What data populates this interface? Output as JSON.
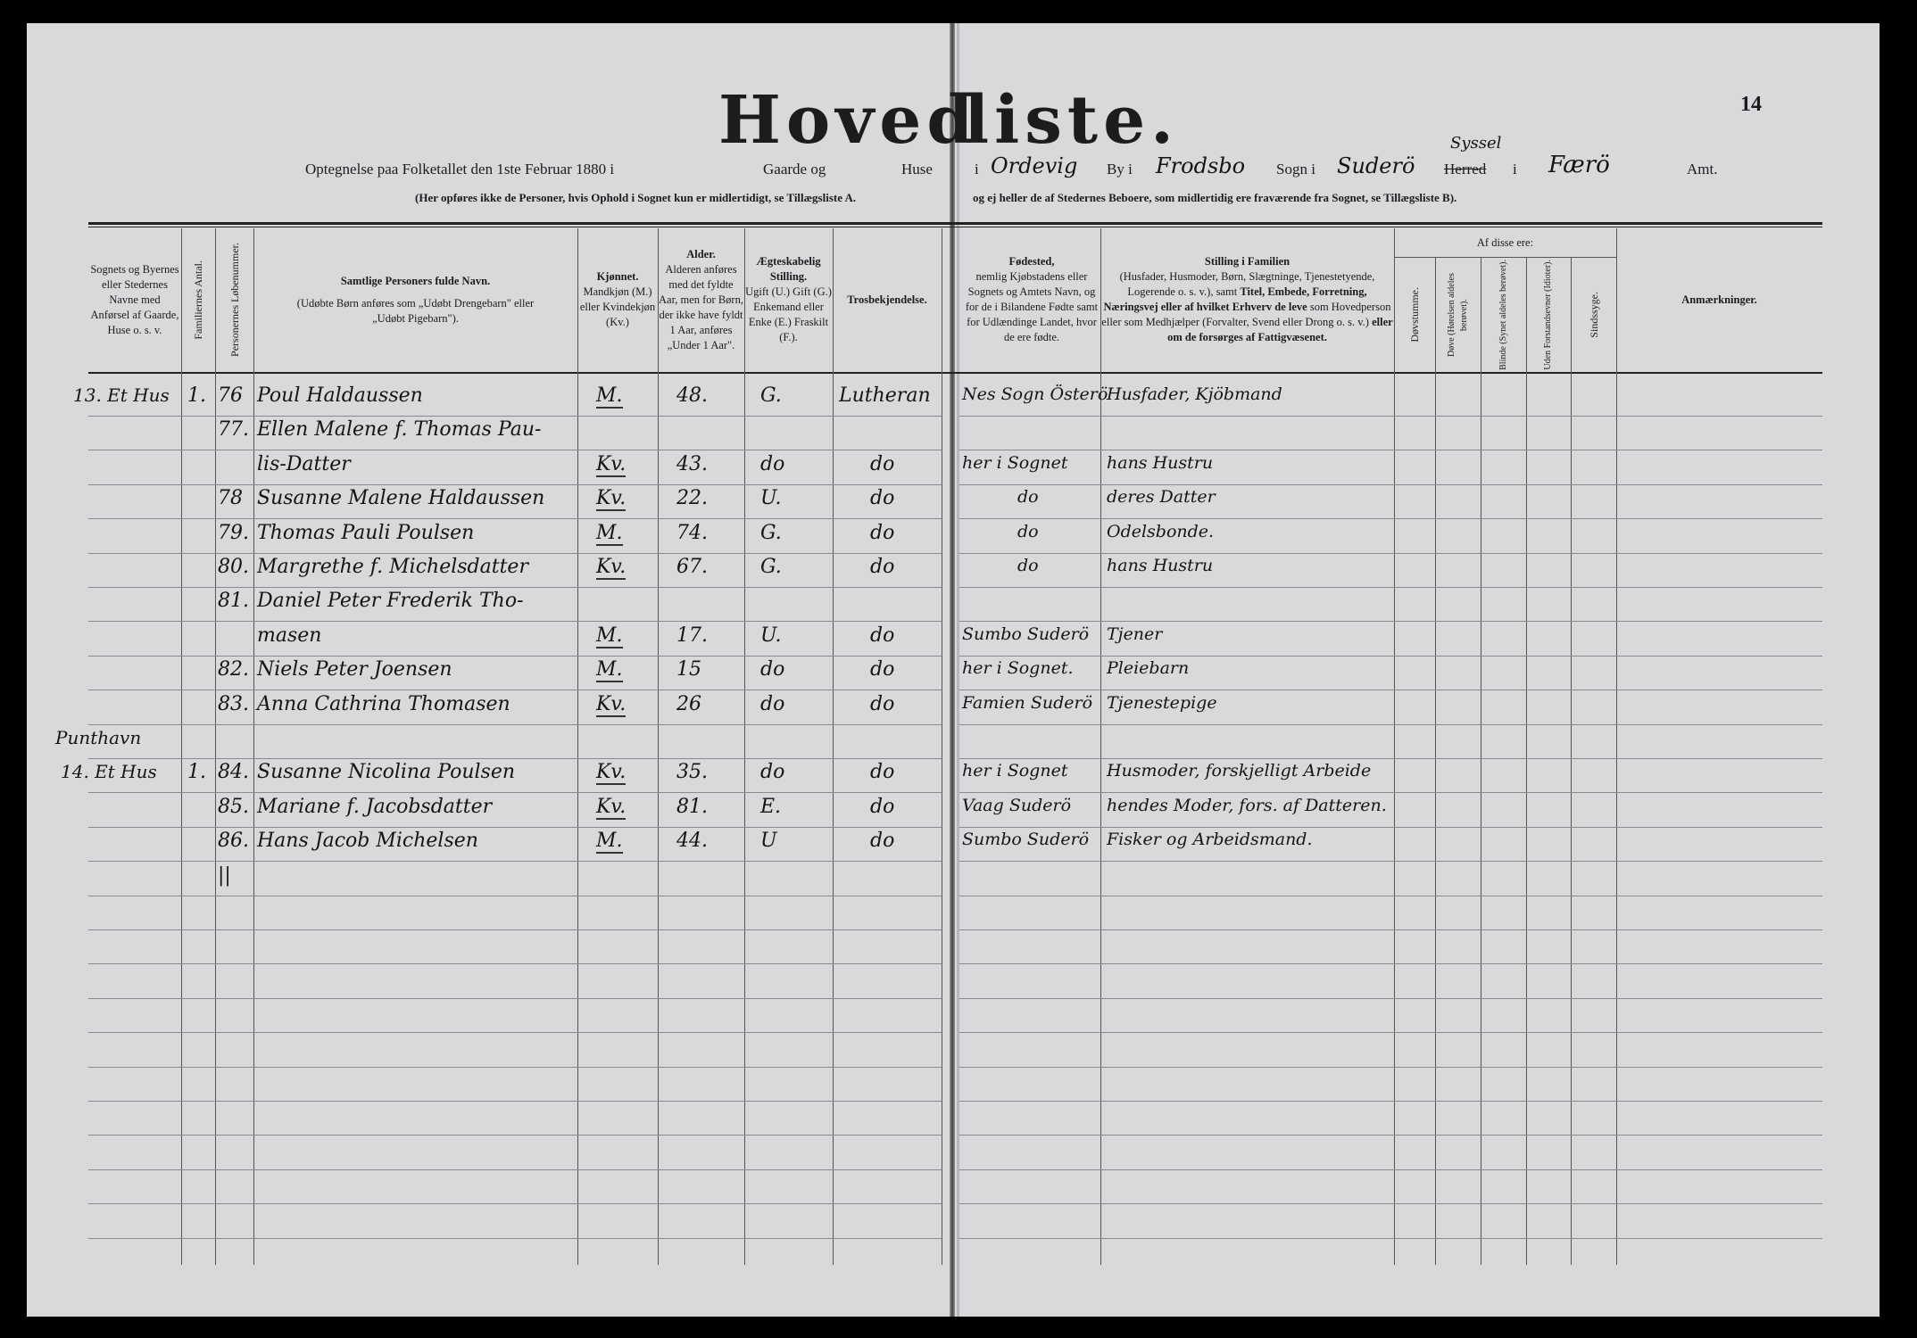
{
  "title": {
    "part1": "Hoved",
    "part2": "liste.",
    "page_number": "14"
  },
  "subtitle": {
    "left": "Optegnelse paa Folketallet den 1ste Februar 1880 i",
    "gaarde": "Gaarde og",
    "huse": "Huse",
    "i1": "i",
    "place_hw": "Ordevig",
    "by": "By i",
    "sogn_hw": "Frodsbo",
    "sogn": "Sogn i",
    "syssel_hw": "Suderö",
    "syssel_over": "Syssel",
    "herred_struck": "Herred",
    "i2": "i",
    "amt_hw": "Færö",
    "amt": "Amt.",
    "note_left": "(Her opføres ikke de Personer, hvis Ophold i Sognet kun er midlertidigt, se Tillægsliste A.",
    "note_right": "og ej heller de af Stedernes Beboere, som midlertidig ere fraværende fra Sognet, se Tillægsliste B)."
  },
  "headers": {
    "place": "Sognets og Byernes eller Stedernes Navne med Anførsel af Gaarde, Huse o. s. v.",
    "families": "Familiernes Antal.",
    "person_no": "Personernes Løbenummer.",
    "name_title": "Samtlige Personers fulde Navn.",
    "name_note": "(Udøbte Børn anføres som „Udøbt Drengebarn\" eller „Udøbt Pigebarn\").",
    "sex_title": "Kjønnet.",
    "sex_note": "Mandkjøn (M.) eller Kvindekjøn (Kv.)",
    "age_title": "Alder.",
    "age_note": "Alderen anføres med det fyldte Aar, men for Børn, der ikke have fyldt 1 Aar, anføres „Under 1 Aar\".",
    "civil_title": "Ægteskabelig Stilling.",
    "civil_note": "Ugift (U.) Gift (G.) Enkemand eller Enke (E.) Fraskilt (F.).",
    "religion": "Trosbekjendelse.",
    "birth_title": "Fødested,",
    "birth_note": "nemlig Kjøbstadens eller Sognets og Amtets Navn, og for de i Bilandene Fødte samt for Udlændinge Landet, hvor de ere fødte.",
    "position_title": "Stilling i Familien",
    "position_note1": "(Husfader, Husmoder, Børn, Slægtninge, Tjenestetyende, Logerende o. s. v.), samt",
    "position_bold1": "Titel, Embede, Forretning, Næringsvej eller af hvilket Erhverv de leve",
    "position_note2": "som Hovedperson eller som Medhjælper (Forvalter, Svend eller Drong o. s. v.)",
    "position_bold2": "eller om de forsørges af Fattigvæsenet.",
    "af_disse": "Af disse ere:",
    "deaf_mute": "Døvstumme.",
    "deaf": "Døve (Hørelsen aldeles berøvet).",
    "blind": "Blinde (Synet aldeles berøvet).",
    "idiots": "Uden Forstandsevner (Idioter).",
    "insane": "Sindssyge.",
    "remarks": "Anmærkninger."
  },
  "rows": [
    {
      "place": "13. Et Hus",
      "fam": "1.",
      "no": "76",
      "name": "Poul Haldaussen",
      "sex": "M.",
      "age": "48.",
      "civil": "G.",
      "religion": "Lutheran",
      "birth": "Nes Sogn Österö",
      "position": "Husfader, Kjöbmand"
    },
    {
      "no": "77.",
      "name": "Ellen Malene f. Thomas Pau-"
    },
    {
      "name": "lis-Datter",
      "sex": "Kv.",
      "age": "43.",
      "civil": "do",
      "religion": "do",
      "birth": "her i Sognet",
      "position": "hans Hustru"
    },
    {
      "no": "78",
      "name": "Susanne Malene Haldaussen",
      "sex": "Kv.",
      "age": "22.",
      "civil": "U.",
      "religion": "do",
      "birth": "do",
      "position": "deres Datter"
    },
    {
      "no": "79.",
      "name": "Thomas Pauli Poulsen",
      "sex": "M.",
      "age": "74.",
      "civil": "G.",
      "religion": "do",
      "birth": "do",
      "position": "Odelsbonde."
    },
    {
      "no": "80.",
      "name": "Margrethe f. Michelsdatter",
      "sex": "Kv.",
      "age": "67.",
      "civil": "G.",
      "religion": "do",
      "birth": "do",
      "position": "hans Hustru"
    },
    {
      "no": "81.",
      "name": "Daniel Peter Frederik Tho-"
    },
    {
      "name": "masen",
      "sex": "M.",
      "age": "17.",
      "civil": "U.",
      "religion": "do",
      "birth": "Sumbo Suderö",
      "position": "Tjener"
    },
    {
      "no": "82.",
      "name": "Niels Peter Joensen",
      "sex": "M.",
      "age": "15",
      "civil": "do",
      "religion": "do",
      "birth": "her i Sognet.",
      "position": "Pleiebarn"
    },
    {
      "no": "83.",
      "name": "Anna Cathrina Thomasen",
      "sex": "Kv.",
      "age": "26",
      "civil": "do",
      "religion": "do",
      "birth": "Famien Suderö",
      "position": "Tjenestepige"
    },
    {
      "place": "Punthavn"
    },
    {
      "place": "14. Et Hus",
      "fam": "1.",
      "no": "84.",
      "name": "Susanne Nicolina Poulsen",
      "sex": "Kv.",
      "age": "35.",
      "civil": "do",
      "religion": "do",
      "birth": "her i Sognet",
      "position": "Husmoder, forskjelligt Arbeide"
    },
    {
      "no": "85.",
      "name": "Mariane f. Jacobsdatter",
      "sex": "Kv.",
      "age": "81.",
      "civil": "E.",
      "religion": "do",
      "birth": "Vaag Suderö",
      "position": "hendes Moder, fors. af Datteren."
    },
    {
      "no": "86.",
      "name": "Hans Jacob Michelsen",
      "sex": "M.",
      "age": "44.",
      "civil": "U",
      "religion": "do",
      "birth": "Sumbo Suderö",
      "position": "Fisker og Arbeidsmand."
    },
    {
      "no": "||"
    }
  ]
}
